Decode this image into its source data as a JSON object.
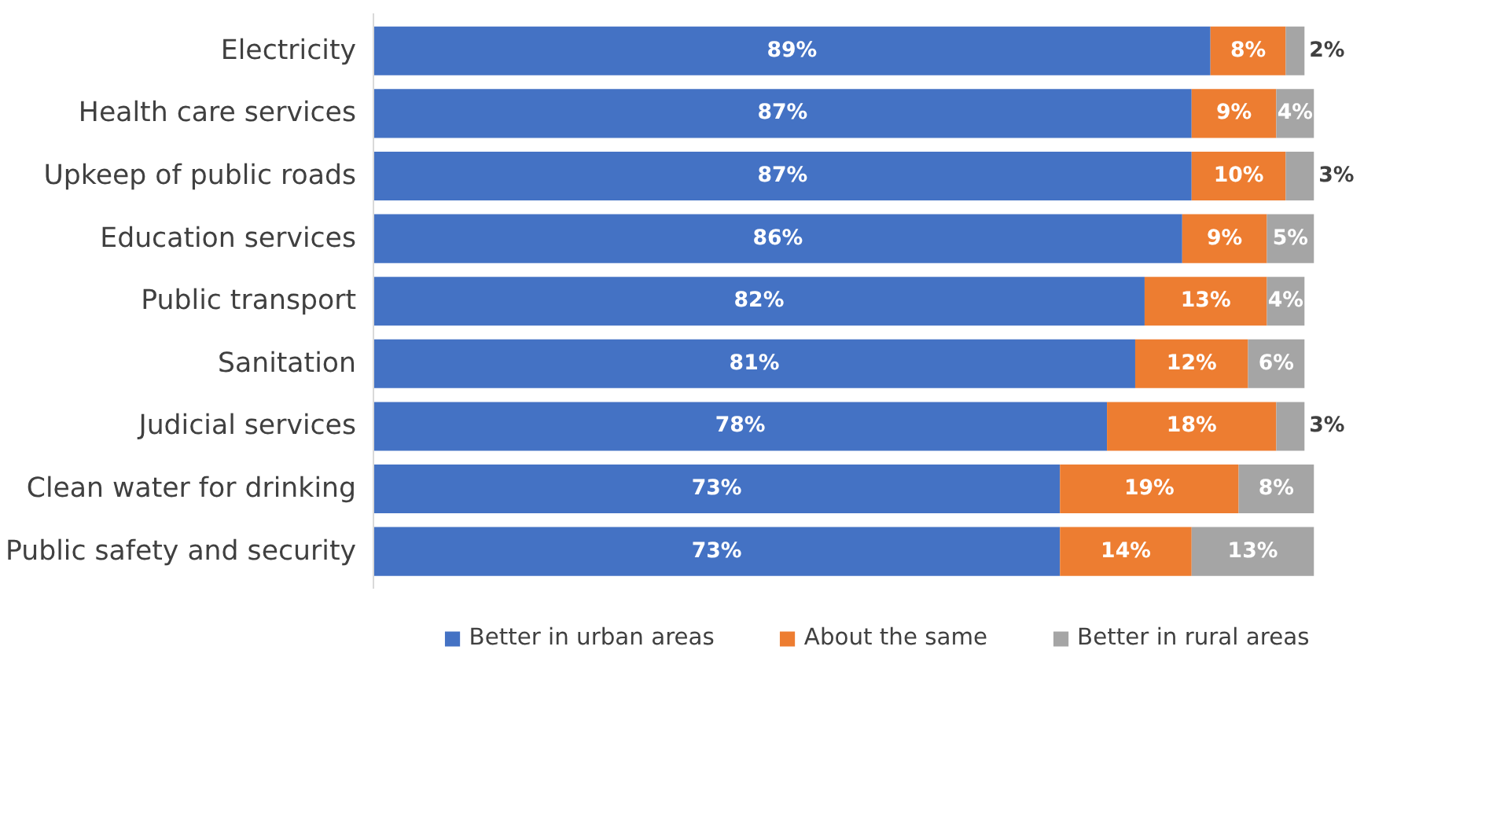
{
  "chart_data": {
    "type": "bar",
    "orientation": "horizontal",
    "stacked": true,
    "legend": "bottom",
    "grid": false,
    "tick_labels": "y",
    "categories": [
      "Electricity",
      "Health care services",
      "Upkeep of public roads",
      "Education services",
      "Public transport",
      "Sanitation",
      "Judicial services",
      "Clean water for drinking",
      "Public safety and security"
    ],
    "series": [
      {
        "name": "Better in urban areas",
        "color": "#4472c4",
        "values": [
          89,
          87,
          87,
          86,
          82,
          81,
          78,
          73,
          73
        ],
        "value_labels": [
          "89%",
          "87%",
          "87%",
          "86%",
          "82%",
          "81%",
          "78%",
          "73%",
          "73%"
        ]
      },
      {
        "name": "About the same",
        "color": "#ed7d31",
        "values": [
          8,
          9,
          10,
          9,
          13,
          12,
          18,
          19,
          14
        ],
        "value_labels": [
          "8%",
          "9%",
          "10%",
          "9%",
          "13%",
          "12%",
          "18%",
          "19%",
          "14%"
        ]
      },
      {
        "name": "Better in rural areas",
        "color": "#a5a5a5",
        "values": [
          2,
          4,
          3,
          5,
          4,
          6,
          3,
          8,
          13
        ],
        "value_labels": [
          "2%",
          "4%",
          "3%",
          "5%",
          "4%",
          "6%",
          "3%",
          "8%",
          "13%"
        ]
      }
    ]
  }
}
